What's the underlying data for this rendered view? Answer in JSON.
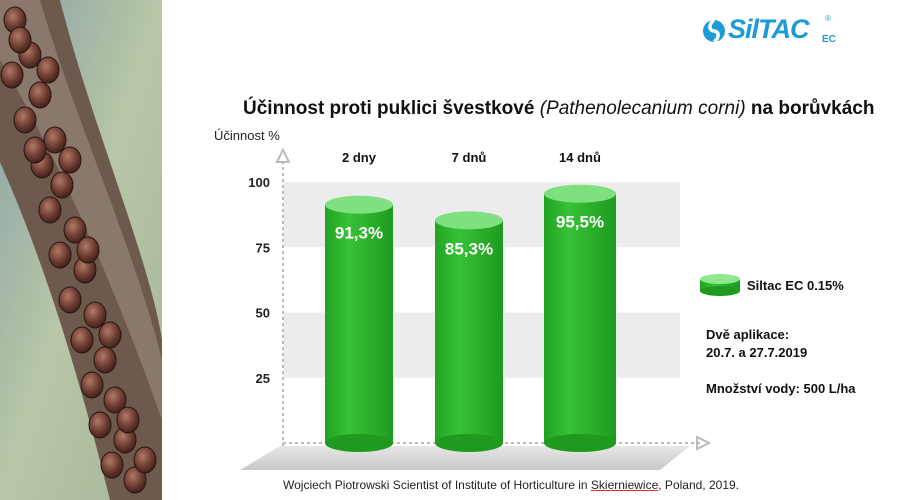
{
  "logo": {
    "text": "SilTAC",
    "sub": "EC",
    "reg": "®"
  },
  "title": {
    "prefix": "Účinnost proti puklici švestkové ",
    "scientific": "(Pathenolecanium corni)",
    "suffix": " na borůvkách"
  },
  "chart_data": {
    "type": "bar",
    "ylabel": "Účinnost %",
    "categories": [
      "2 dny",
      "7 dnů",
      "14 dnů"
    ],
    "series": [
      {
        "name": "Siltac EC 0.15%",
        "values": [
          91.3,
          85.3,
          95.5
        ],
        "labels": [
          "91,3%",
          "85,3%",
          "95,5%"
        ]
      }
    ],
    "yticks": [
      25,
      50,
      75,
      100
    ],
    "ylim": [
      0,
      100
    ],
    "grid": "alternating bands",
    "legend": "right",
    "colors": {
      "bar": "#2eb82e",
      "bar_top": "#7ee07e"
    }
  },
  "notes": {
    "applications_line1": "Dvě aplikace:",
    "applications_line2": "20.7. a 27.7.2019",
    "water": "Množství vody: 500 L/ha"
  },
  "source": {
    "before": "Wojciech Piotrowski Scientist of Institute of Horticulture in ",
    "underlined": "Skierniewice",
    "after": ", Poland, 2019."
  }
}
